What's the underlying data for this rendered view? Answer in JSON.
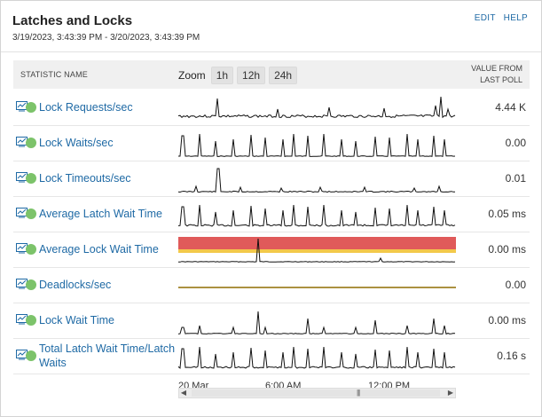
{
  "panel": {
    "title": "Latches and Locks",
    "date_range": "3/19/2023, 3:43:39 PM - 3/20/2023, 3:43:39 PM",
    "links": [
      "EDIT",
      "HELP"
    ]
  },
  "table_header": {
    "statistic_name": "STATISTIC NAME",
    "zoom_label": "Zoom",
    "zoom_buttons": [
      "1h",
      "12h",
      "24h"
    ],
    "value_line1": "VALUE FROM",
    "value_line2": "LAST POLL"
  },
  "rows": [
    {
      "name": "Lock Requests/sec",
      "value": "4.44 K",
      "icon": "chart-icon",
      "status": "up"
    },
    {
      "name": "Lock Waits/sec",
      "value": "0.00",
      "icon": "chart-icon",
      "status": "up"
    },
    {
      "name": "Lock Timeouts/sec",
      "value": "0.01",
      "icon": "chart-icon",
      "status": "up"
    },
    {
      "name": "Average Latch Wait Time",
      "value": "0.05 ms",
      "icon": "chart-icon",
      "status": "up"
    },
    {
      "name": "Average Lock Wait Time",
      "value": "0.00 ms",
      "icon": "chart-icon",
      "status": "up"
    },
    {
      "name": "Deadlocks/sec",
      "value": "0.00",
      "icon": "chart-icon",
      "status": "up"
    },
    {
      "name": "Lock Wait Time",
      "value": "0.00 ms",
      "icon": "chart-icon",
      "status": "up"
    },
    {
      "name": "Total Latch Wait Time/Latch Waits",
      "value": "0.16 s",
      "icon": "chart-icon",
      "status": "up"
    }
  ],
  "timeline": {
    "labels": [
      "20 Mar",
      "6:00 AM",
      "12:00 PM"
    ]
  },
  "colors": {
    "link": "#1f6aa5",
    "status_up": "#7cc36a",
    "threshold_critical": "#e05a5a",
    "threshold_warning": "#f3c94a"
  }
}
